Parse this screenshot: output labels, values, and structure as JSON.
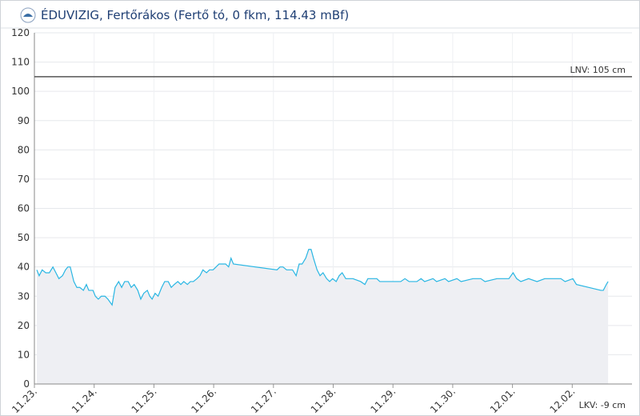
{
  "chart_data": {
    "type": "area",
    "title": "ÉDUVIZIG, Fertőrákos (Fertő tó, 0 fkm, 114.43 mBf)",
    "x": [
      0.04,
      0.08,
      0.13,
      0.19,
      0.25,
      0.31,
      0.36,
      0.41,
      0.47,
      0.52,
      0.56,
      0.6,
      0.66,
      0.71,
      0.76,
      0.82,
      0.87,
      0.91,
      0.98,
      1.02,
      1.07,
      1.12,
      1.18,
      1.23,
      1.3,
      1.35,
      1.41,
      1.46,
      1.51,
      1.57,
      1.62,
      1.67,
      1.73,
      1.78,
      1.83,
      1.89,
      1.93,
      1.97,
      2.02,
      2.07,
      2.13,
      2.18,
      2.24,
      2.29,
      2.34,
      2.4,
      2.45,
      2.5,
      2.56,
      2.61,
      2.66,
      2.72,
      2.77,
      2.82,
      2.88,
      2.93,
      2.99,
      3.04,
      3.09,
      3.15,
      3.2,
      3.25,
      3.29,
      3.33,
      4.06,
      4.11,
      4.16,
      4.22,
      4.27,
      4.32,
      4.38,
      4.43,
      4.48,
      4.54,
      4.59,
      4.63,
      4.67,
      4.73,
      4.78,
      4.83,
      4.89,
      4.94,
      4.99,
      5.05,
      5.1,
      5.15,
      5.21,
      5.33,
      5.46,
      5.53,
      5.58,
      5.73,
      5.78,
      5.99,
      6.13,
      6.2,
      6.27,
      6.4,
      6.47,
      6.53,
      6.67,
      6.73,
      6.87,
      6.93,
      7.07,
      7.14,
      7.34,
      7.47,
      7.54,
      7.74,
      7.94,
      8.01,
      8.07,
      8.14,
      8.27,
      8.41,
      8.54,
      8.81,
      8.88,
      9.01,
      9.07,
      9.48,
      9.52,
      9.57,
      9.6
    ],
    "series": [
      {
        "color": "#29b6e3",
        "fill": "#eeeff3",
        "values": [
          39,
          37,
          39,
          38,
          38,
          40,
          38,
          36,
          37,
          39,
          40,
          40,
          35,
          33,
          33,
          32,
          34,
          32,
          32,
          30,
          29,
          30,
          30,
          29,
          27,
          33,
          35,
          33,
          35,
          35,
          33,
          34,
          32,
          29,
          31,
          32,
          30,
          29,
          31,
          30,
          33,
          35,
          35,
          33,
          34,
          35,
          34,
          35,
          34,
          35,
          35,
          36,
          37,
          39,
          38,
          39,
          39,
          40,
          41,
          41,
          41,
          40,
          43,
          41,
          39,
          40,
          40,
          39,
          39,
          39,
          37,
          41,
          41,
          43,
          46,
          46,
          43,
          39,
          37,
          38,
          36,
          35,
          36,
          35,
          37,
          38,
          36,
          36,
          35,
          34,
          36,
          36,
          35,
          35,
          35,
          36,
          35,
          35,
          36,
          35,
          36,
          35,
          36,
          35,
          36,
          35,
          36,
          36,
          35,
          36,
          36,
          38,
          36,
          35,
          36,
          35,
          36,
          36,
          35,
          36,
          34,
          32,
          32,
          34,
          35
        ]
      }
    ],
    "xlim": [
      0,
      10
    ],
    "xticks": [
      {
        "value": 0,
        "label": "11.23."
      },
      {
        "value": 1,
        "label": "11.24."
      },
      {
        "value": 2,
        "label": "11.25."
      },
      {
        "value": 3,
        "label": "11.26."
      },
      {
        "value": 4,
        "label": "11.27."
      },
      {
        "value": 5,
        "label": "11.28."
      },
      {
        "value": 6,
        "label": "11.29."
      },
      {
        "value": 7,
        "label": "11.30."
      },
      {
        "value": 8,
        "label": "12.01."
      },
      {
        "value": 9,
        "label": "12.02."
      }
    ],
    "ylim": [
      0,
      120
    ],
    "yticks": [
      0,
      10,
      20,
      30,
      40,
      50,
      60,
      70,
      80,
      90,
      100,
      110,
      120
    ],
    "grid": true,
    "thresholds": [
      {
        "value": 105,
        "label": "LNV: 105 cm"
      },
      {
        "value": -9,
        "label": "LKV: -9 cm"
      }
    ]
  }
}
